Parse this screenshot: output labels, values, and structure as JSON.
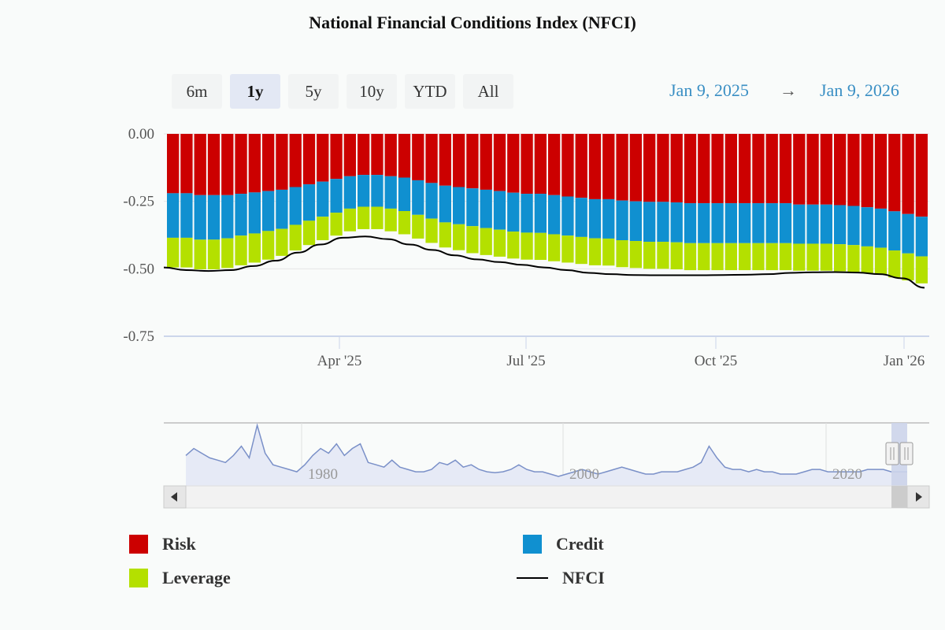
{
  "title": "National Financial Conditions Index (NFCI)",
  "range_buttons": [
    {
      "label": "6m",
      "active": false
    },
    {
      "label": "1y",
      "active": true
    },
    {
      "label": "5y",
      "active": false
    },
    {
      "label": "10y",
      "active": false
    },
    {
      "label": "YTD",
      "active": false
    },
    {
      "label": "All",
      "active": false
    }
  ],
  "date_range": {
    "from": "Jan 9, 2025",
    "arrow": "→",
    "to": "Jan 9, 2026"
  },
  "colors": {
    "risk": "#cc0000",
    "credit": "#1090d0",
    "leverage": "#b4e000",
    "nfci": "#000000",
    "navigator": "#7a90c8"
  },
  "chart_data": {
    "type": "bar",
    "stacked": true,
    "title": "National Financial Conditions Index (NFCI)",
    "ylim": [
      -0.75,
      0.0
    ],
    "yticks": [
      "0.00",
      "-0.25",
      "-0.50",
      "-0.75"
    ],
    "xticks": [
      "Apr '25",
      "Jul '25",
      "Oct '25",
      "Jan '26"
    ],
    "series": [
      {
        "name": "Risk",
        "values": [
          -0.22,
          -0.22,
          -0.227,
          -0.227,
          -0.227,
          -0.222,
          -0.217,
          -0.212,
          -0.207,
          -0.197,
          -0.187,
          -0.177,
          -0.167,
          -0.157,
          -0.152,
          -0.152,
          -0.157,
          -0.162,
          -0.172,
          -0.182,
          -0.192,
          -0.197,
          -0.202,
          -0.207,
          -0.212,
          -0.218,
          -0.222,
          -0.222,
          -0.227,
          -0.232,
          -0.237,
          -0.242,
          -0.242,
          -0.247,
          -0.25,
          -0.252,
          -0.252,
          -0.254,
          -0.257,
          -0.257,
          -0.257,
          -0.257,
          -0.257,
          -0.257,
          -0.257,
          -0.257,
          -0.262,
          -0.262,
          -0.262,
          -0.264,
          -0.267,
          -0.272,
          -0.277,
          -0.287,
          -0.297,
          -0.307
        ]
      },
      {
        "name": "Credit",
        "values": [
          -0.165,
          -0.165,
          -0.165,
          -0.165,
          -0.16,
          -0.155,
          -0.152,
          -0.148,
          -0.145,
          -0.14,
          -0.135,
          -0.13,
          -0.125,
          -0.12,
          -0.118,
          -0.118,
          -0.12,
          -0.124,
          -0.128,
          -0.132,
          -0.136,
          -0.138,
          -0.14,
          -0.142,
          -0.143,
          -0.144,
          -0.144,
          -0.145,
          -0.145,
          -0.145,
          -0.145,
          -0.145,
          -0.146,
          -0.147,
          -0.147,
          -0.148,
          -0.148,
          -0.148,
          -0.148,
          -0.148,
          -0.148,
          -0.148,
          -0.148,
          -0.148,
          -0.148,
          -0.148,
          -0.145,
          -0.145,
          -0.145,
          -0.145,
          -0.145,
          -0.145,
          -0.145,
          -0.145,
          -0.146,
          -0.147
        ]
      },
      {
        "name": "Leverage",
        "values": [
          -0.11,
          -0.11,
          -0.11,
          -0.11,
          -0.11,
          -0.11,
          -0.108,
          -0.106,
          -0.1,
          -0.095,
          -0.09,
          -0.087,
          -0.085,
          -0.084,
          -0.083,
          -0.083,
          -0.084,
          -0.086,
          -0.088,
          -0.09,
          -0.093,
          -0.096,
          -0.1,
          -0.1,
          -0.1,
          -0.1,
          -0.1,
          -0.1,
          -0.1,
          -0.1,
          -0.1,
          -0.1,
          -0.1,
          -0.1,
          -0.1,
          -0.1,
          -0.1,
          -0.1,
          -0.1,
          -0.1,
          -0.1,
          -0.1,
          -0.1,
          -0.1,
          -0.1,
          -0.1,
          -0.1,
          -0.1,
          -0.1,
          -0.1,
          -0.1,
          -0.1,
          -0.1,
          -0.1,
          -0.1,
          -0.1
        ]
      }
    ],
    "nfci": {
      "name": "NFCI",
      "values": [
        -0.495,
        -0.505,
        -0.508,
        -0.505,
        -0.49,
        -0.47,
        -0.44,
        -0.41,
        -0.385,
        -0.38,
        -0.39,
        -0.41,
        -0.43,
        -0.45,
        -0.465,
        -0.475,
        -0.485,
        -0.495,
        -0.505,
        -0.515,
        -0.52,
        -0.523,
        -0.524,
        -0.524,
        -0.524,
        -0.523,
        -0.522,
        -0.52,
        -0.515,
        -0.513,
        -0.512,
        -0.514,
        -0.52,
        -0.535,
        -0.57
      ]
    },
    "navigator": {
      "labels": [
        "1980",
        "2000",
        "2020"
      ],
      "values": [
        0.45,
        0.6,
        0.5,
        0.4,
        0.35,
        0.3,
        0.45,
        0.65,
        0.4,
        1.1,
        0.5,
        0.25,
        0.2,
        0.15,
        0.1,
        0.25,
        0.45,
        0.6,
        0.5,
        0.7,
        0.45,
        0.6,
        0.7,
        0.3,
        0.25,
        0.2,
        0.35,
        0.2,
        0.15,
        0.1,
        0.1,
        0.15,
        0.3,
        0.25,
        0.35,
        0.2,
        0.25,
        0.15,
        0.1,
        0.08,
        0.1,
        0.15,
        0.25,
        0.15,
        0.1,
        0.1,
        0.05,
        0.0,
        0.05,
        0.1,
        0.15,
        0.1,
        0.05,
        0.1,
        0.15,
        0.2,
        0.15,
        0.1,
        0.05,
        0.05,
        0.1,
        0.1,
        0.1,
        0.15,
        0.2,
        0.3,
        0.65,
        0.4,
        0.2,
        0.15,
        0.15,
        0.1,
        0.15,
        0.1,
        0.1,
        0.05,
        0.05,
        0.05,
        0.1,
        0.15,
        0.15,
        0.1,
        0.1,
        0.1,
        0.1,
        0.1,
        0.15,
        0.15,
        0.15,
        0.1,
        0.1,
        0.1
      ]
    }
  },
  "legend": [
    {
      "label": "Risk",
      "kind": "box",
      "color": "#cc0000"
    },
    {
      "label": "Credit",
      "kind": "box",
      "color": "#1090d0"
    },
    {
      "label": "Leverage",
      "kind": "box",
      "color": "#b4e000"
    },
    {
      "label": "NFCI",
      "kind": "line",
      "color": "#000000"
    }
  ]
}
